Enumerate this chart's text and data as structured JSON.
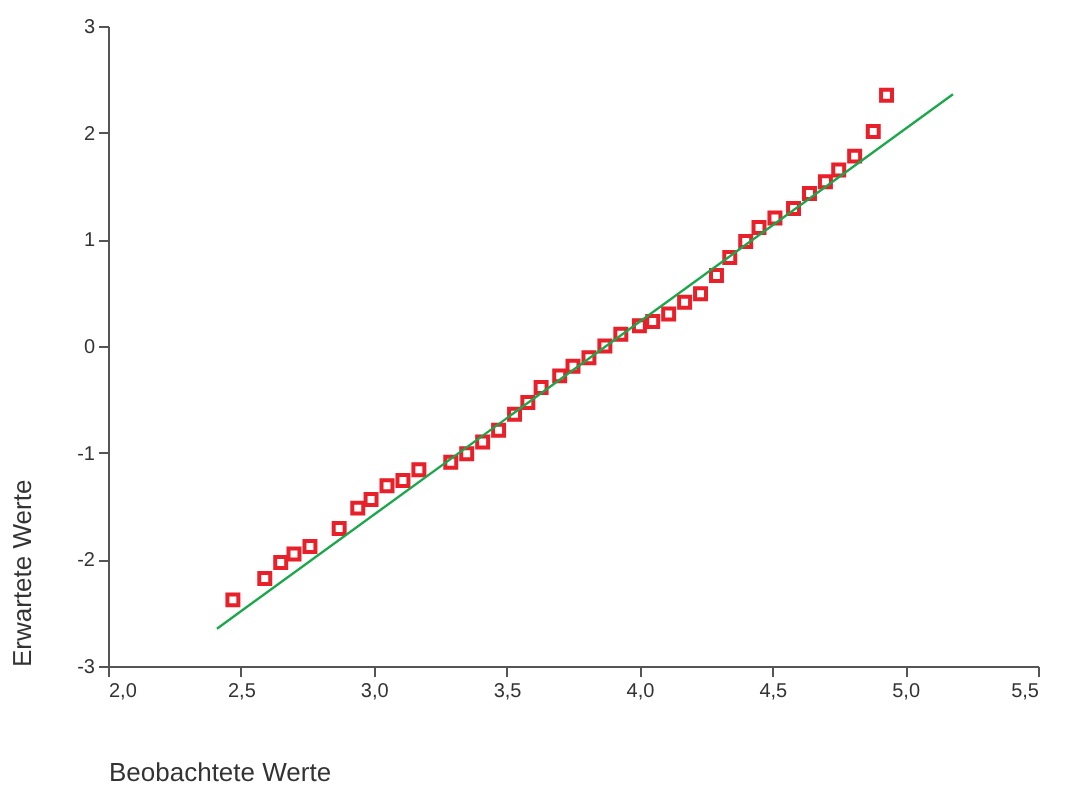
{
  "chart_data": {
    "type": "scatter",
    "xlabel": "Beobachtete Werte",
    "ylabel": "Erwartete Werte",
    "xlim": [
      2.0,
      5.5
    ],
    "ylim": [
      -3,
      3
    ],
    "xticks": [
      {
        "value": 2.0,
        "label": "2,0"
      },
      {
        "value": 2.5,
        "label": "2,5"
      },
      {
        "value": 3.0,
        "label": "3,0"
      },
      {
        "value": 3.5,
        "label": "3,5"
      },
      {
        "value": 4.0,
        "label": "4,0"
      },
      {
        "value": 4.5,
        "label": "4,5"
      },
      {
        "value": 5.0,
        "label": "5,0"
      },
      {
        "value": 5.5,
        "label": "5,5"
      }
    ],
    "yticks": [
      -3,
      -2,
      -1,
      0,
      1,
      2,
      3
    ],
    "grid": false,
    "series": [
      {
        "type": "scatter",
        "marker": "square",
        "color": "#e8202a",
        "x": [
          2.47,
          2.59,
          2.65,
          2.7,
          2.76,
          2.87,
          2.94,
          2.99,
          3.05,
          3.11,
          3.17,
          3.29,
          3.35,
          3.41,
          3.47,
          3.53,
          3.58,
          3.63,
          3.7,
          3.75,
          3.81,
          3.87,
          3.93,
          4.0,
          4.05,
          4.11,
          4.17,
          4.23,
          4.29,
          4.34,
          4.4,
          4.45,
          4.51,
          4.58,
          4.64,
          4.7,
          4.75,
          4.81,
          4.88,
          4.93
        ],
        "values": [
          -2.38,
          -2.18,
          -2.03,
          -1.95,
          -1.88,
          -1.71,
          -1.52,
          -1.44,
          -1.31,
          -1.26,
          -1.16,
          -1.09,
          -1.01,
          -0.9,
          -0.79,
          -0.64,
          -0.53,
          -0.39,
          -0.28,
          -0.19,
          -0.11,
          0.0,
          0.11,
          0.19,
          0.23,
          0.3,
          0.41,
          0.49,
          0.66,
          0.83,
          0.98,
          1.11,
          1.2,
          1.29,
          1.43,
          1.54,
          1.65,
          1.78,
          2.01,
          2.35
        ]
      },
      {
        "type": "line",
        "marker": "none",
        "line_style": "solid",
        "color": "#1aa64a",
        "x": [
          2.41,
          5.18
        ],
        "values": [
          -2.65,
          2.36
        ]
      }
    ]
  }
}
